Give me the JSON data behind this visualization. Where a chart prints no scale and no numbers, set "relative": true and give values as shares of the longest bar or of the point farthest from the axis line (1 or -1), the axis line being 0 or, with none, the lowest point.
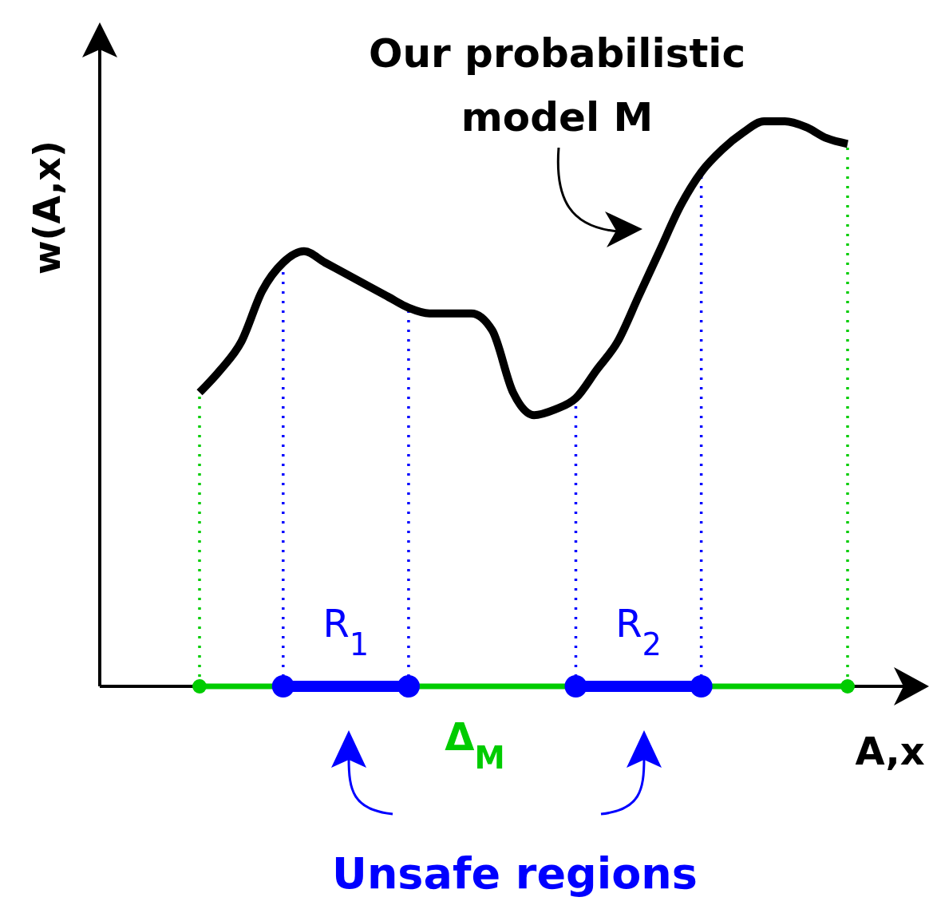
{
  "chart_data": {
    "type": "line",
    "relative": true,
    "xlabel": "A,x",
    "ylabel": "w(A,x)",
    "categories": [
      null,
      null,
      null,
      null,
      null,
      null,
      null,
      null,
      null,
      null,
      null,
      null,
      null,
      null,
      null,
      null,
      null,
      null,
      null,
      null,
      null,
      null,
      null,
      null,
      null,
      null,
      null,
      null,
      null,
      null,
      null,
      null
    ],
    "series": [
      {
        "color": "#000000",
        "values": [
          0.52,
          0.56,
          0.61,
          0.7,
          0.75,
          0.77,
          0.75,
          0.73,
          0.71,
          0.69,
          0.67,
          0.66,
          0.66,
          0.66,
          0.63,
          0.52,
          0.48,
          0.49,
          0.51,
          0.56,
          0.61,
          0.69,
          0.77,
          0.85,
          0.91,
          0.95,
          0.98,
          1,
          1,
          0.99,
          0.97,
          0.96
        ]
      }
    ],
    "annotations": [
      "Our probabilistic model M",
      "Unsafe regions",
      "Δ$_{M}$",
      "R$_{1}$",
      "R$_{2}$"
    ],
    "marker": "none",
    "line_style": "solid"
  }
}
